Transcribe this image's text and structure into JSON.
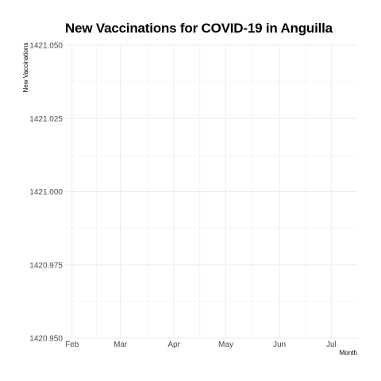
{
  "chart_data": {
    "type": "line",
    "title": "New Vaccinations for COVID-19 in Anguilla",
    "xlabel": "Month",
    "ylabel": "New Vaccinations",
    "x_tick_labels": [
      "Feb",
      "Mar",
      "Apr",
      "May",
      "Jun",
      "Jul"
    ],
    "x_tick_dates": [
      "2021-02-01",
      "2021-03-01",
      "2021-04-01",
      "2021-05-01",
      "2021-06-01",
      "2021-07-01"
    ],
    "xlim": [
      "2021-01-28",
      "2021-07-16"
    ],
    "ylim": [
      1420.95,
      1421.05
    ],
    "y_ticks": [
      1420.95,
      1420.975,
      1421.0,
      1421.025,
      1421.05
    ],
    "y_tick_labels": [
      "1420.950",
      "1420.975",
      "1421.000",
      "1421.025",
      "1421.050"
    ],
    "series": [],
    "grid": true,
    "legend": "none",
    "grid_color": "#ebebeb",
    "tick_label_color": "#4d4d4d"
  }
}
